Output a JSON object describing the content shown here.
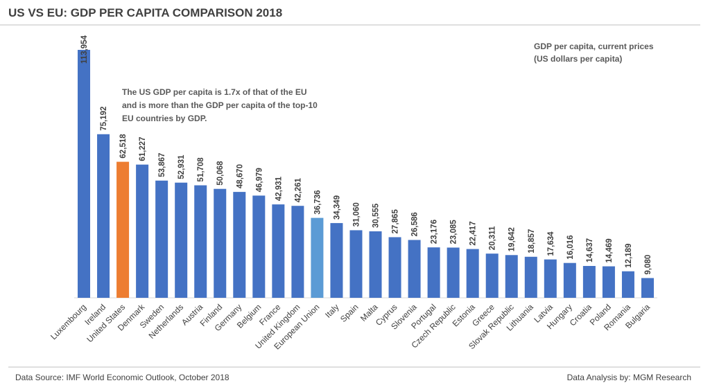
{
  "chart_data": {
    "type": "bar",
    "title": "US VS EU: GDP PER CAPITA COMPARISON 2018",
    "categories": [
      "Luxembourg",
      "Ireland",
      "United States",
      "Denmark",
      "Sweden",
      "Netherlands",
      "Austria",
      "Finland",
      "Germany",
      "Belgium",
      "France",
      "United Kingdom",
      "European Union",
      "Italy",
      "Spain",
      "Malta",
      "Cyprus",
      "Slovenia",
      "Portugal",
      "Czech Republic",
      "Estonia",
      "Greece",
      "Slovak Republic",
      "Lithuania",
      "Latvia",
      "Hungary",
      "Croatia",
      "Poland",
      "Romania",
      "Bulgaria"
    ],
    "values": [
      113954,
      75192,
      62518,
      61227,
      53867,
      52931,
      51708,
      50068,
      48670,
      46979,
      42931,
      42261,
      36736,
      34349,
      31060,
      30555,
      27865,
      26586,
      23176,
      23085,
      22417,
      20311,
      19642,
      18857,
      17634,
      16016,
      14637,
      14469,
      12189,
      9080
    ],
    "value_labels": [
      "113,954",
      "75,192",
      "62,518",
      "61,227",
      "53,867",
      "52,931",
      "51,708",
      "50,068",
      "48,670",
      "46,979",
      "42,931",
      "42,261",
      "36,736",
      "34,349",
      "31,060",
      "30,555",
      "27,865",
      "26,586",
      "23,176",
      "23,085",
      "22,417",
      "20,311",
      "19,642",
      "18,857",
      "17,634",
      "16,016",
      "14,637",
      "14,469",
      "12,189",
      "9,080"
    ],
    "colors": [
      "#4472c4",
      "#4472c4",
      "#ed7d31",
      "#4472c4",
      "#4472c4",
      "#4472c4",
      "#4472c4",
      "#4472c4",
      "#4472c4",
      "#4472c4",
      "#4472c4",
      "#4472c4",
      "#5b9bd5",
      "#4472c4",
      "#4472c4",
      "#4472c4",
      "#4472c4",
      "#4472c4",
      "#4472c4",
      "#4472c4",
      "#4472c4",
      "#4472c4",
      "#4472c4",
      "#4472c4",
      "#4472c4",
      "#4472c4",
      "#4472c4",
      "#4472c4",
      "#4472c4",
      "#4472c4"
    ],
    "annotation": [
      "The US GDP per capita is 1.7x of that of the EU",
      "and is more than the GDP per capita of the top-10",
      "EU countries by GDP."
    ],
    "axis_note": [
      "GDP per capita, current prices",
      "(US dollars per capita)"
    ],
    "source": "Data Source: IMF World Economic Outlook, October 2018",
    "credit": "Data Analysis by: MGM Research"
  }
}
